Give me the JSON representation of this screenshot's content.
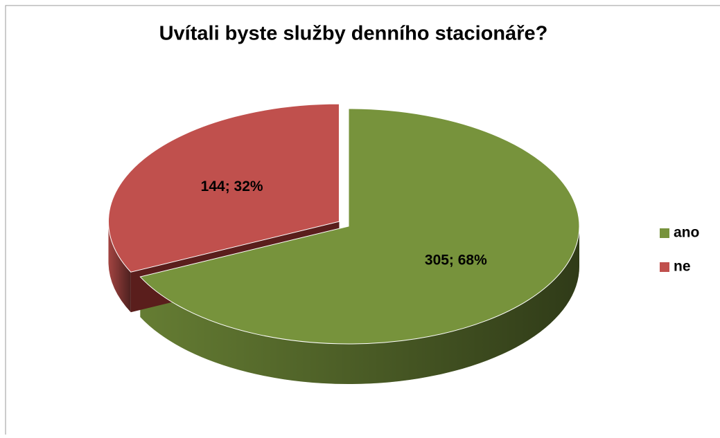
{
  "chart_data": {
    "type": "pie",
    "title": "Uvítali byste služby denního stacionáře?",
    "categories": [
      "ano",
      "ne"
    ],
    "values": [
      305,
      144
    ],
    "value_labels": [
      "305; 68%",
      "144; 32%"
    ],
    "colors": [
      "#77933c",
      "#c0504d"
    ],
    "legend": "right"
  }
}
